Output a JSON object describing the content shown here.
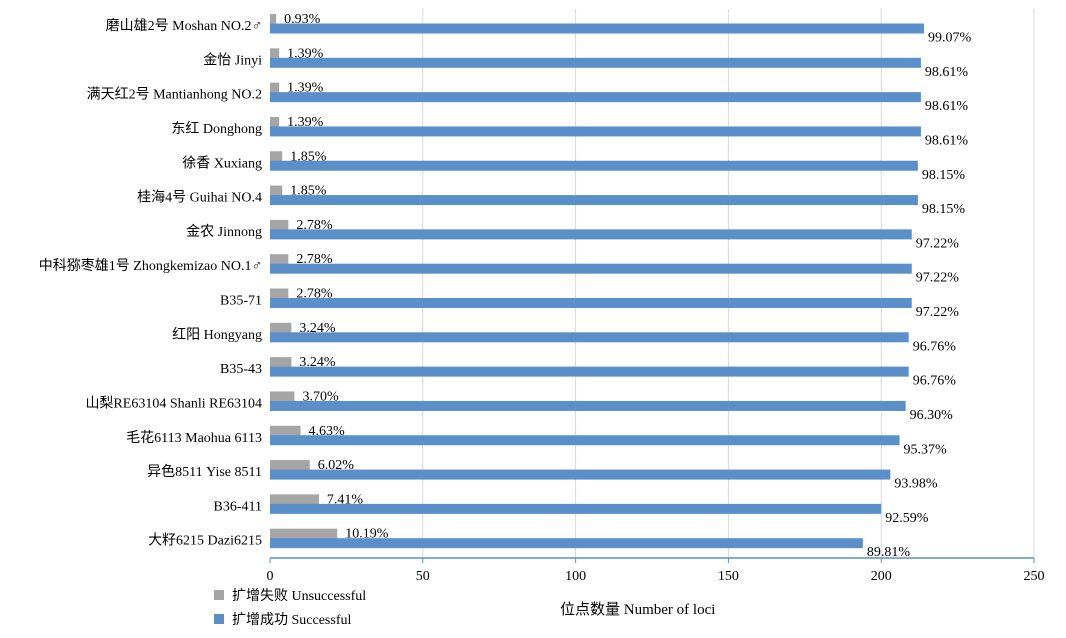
{
  "chart_data": {
    "type": "bar",
    "orientation": "horizontal",
    "categories": [
      "磨山雄2号 Moshan NO.2♂",
      "金怡 Jinyi",
      "满天红2号 Mantianhong NO.2",
      "东红 Donghong",
      "徐香 Xuxiang",
      "桂海4号 Guihai NO.4",
      "金农 Jinnong",
      "中科猕枣雄1号 Zhongkemizao NO.1♂",
      "B35-71",
      "红阳 Hongyang",
      "B35-43",
      "山梨RE63104 Shanli RE63104",
      "毛花6113 Maohua 6113",
      "异色8511 Yise 8511",
      "B36-411",
      "大籽6215 Dazi6215"
    ],
    "series": [
      {
        "name": "扩增失败 Unsuccessful",
        "color": "#a5a5a5",
        "values": [
          2,
          3,
          3,
          3,
          4,
          4,
          6,
          6,
          6,
          7,
          7,
          8,
          10,
          13,
          16,
          22
        ],
        "labels": [
          "0.93%",
          "1.39%",
          "1.39%",
          "1.39%",
          "1.85%",
          "1.85%",
          "2.78%",
          "2.78%",
          "2.78%",
          "3.24%",
          "3.24%",
          "3.70%",
          "4.63%",
          "6.02%",
          "7.41%",
          "10.19%"
        ]
      },
      {
        "name": "扩增成功 Successful",
        "color": "#5b8fc9",
        "values": [
          214,
          213,
          213,
          213,
          212,
          212,
          210,
          210,
          210,
          209,
          209,
          208,
          206,
          203,
          200,
          194
        ],
        "labels": [
          "99.07%",
          "98.61%",
          "98.61%",
          "98.61%",
          "98.15%",
          "98.15%",
          "97.22%",
          "97.22%",
          "97.22%",
          "96.76%",
          "96.76%",
          "96.30%",
          "95.37%",
          "93.98%",
          "92.59%",
          "89.81%"
        ]
      }
    ],
    "xlabel": "位点数量 Number of loci",
    "xlim": [
      0,
      250
    ],
    "xticks": [
      0,
      50,
      100,
      150,
      200,
      250
    ],
    "grid": true,
    "legend_position": "bottom-left"
  }
}
